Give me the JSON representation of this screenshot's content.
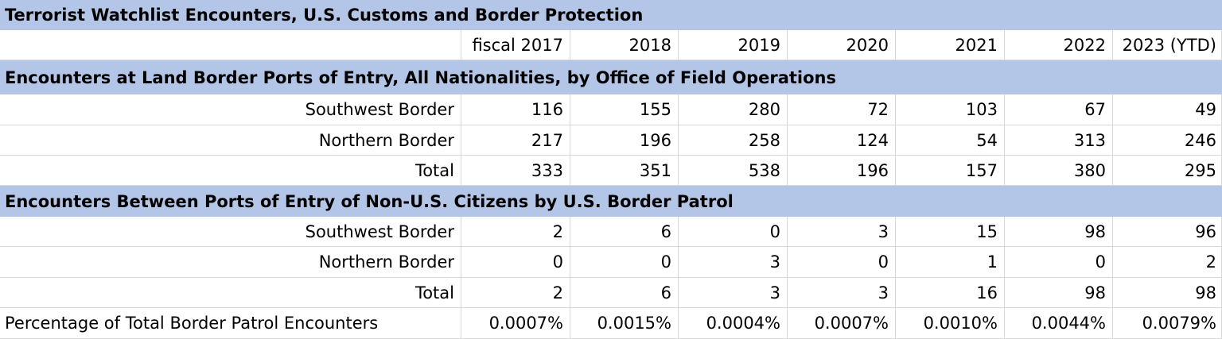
{
  "title": "Terrorist Watchlist Encounters, U.S. Customs and Border Protection",
  "years": [
    "fiscal 2017",
    "2018",
    "2019",
    "2020",
    "2021",
    "2022",
    "2023 (YTD)"
  ],
  "section1": {
    "heading": "Encounters at Land Border Ports of Entry, All Nationalities, by Office of Field Operations",
    "rows": [
      {
        "label": "Southwest Border",
        "values": [
          "116",
          "155",
          "280",
          "72",
          "103",
          "67",
          "49"
        ]
      },
      {
        "label": "Northern Border",
        "values": [
          "217",
          "196",
          "258",
          "124",
          "54",
          "313",
          "246"
        ]
      },
      {
        "label": "Total",
        "values": [
          "333",
          "351",
          "538",
          "196",
          "157",
          "380",
          "295"
        ]
      }
    ]
  },
  "section2": {
    "heading": "Encounters Between Ports of Entry of Non-U.S. Citizens by U.S. Border Patrol",
    "rows": [
      {
        "label": "Southwest Border",
        "values": [
          "2",
          "6",
          "0",
          "3",
          "15",
          "98",
          "96"
        ]
      },
      {
        "label": "Northern Border",
        "values": [
          "0",
          "0",
          "3",
          "0",
          "1",
          "0",
          "2"
        ]
      },
      {
        "label": "Total",
        "values": [
          "2",
          "6",
          "3",
          "3",
          "16",
          "98",
          "98"
        ]
      }
    ]
  },
  "percentage": {
    "label": "Percentage of Total Border Patrol Encounters",
    "values": [
      "0.0007%",
      "0.0015%",
      "0.0004%",
      "0.0007%",
      "0.0010%",
      "0.0044%",
      "0.0079%"
    ]
  },
  "colors": {
    "band": "#b4c6e7",
    "grid": "#d9d9d9"
  }
}
